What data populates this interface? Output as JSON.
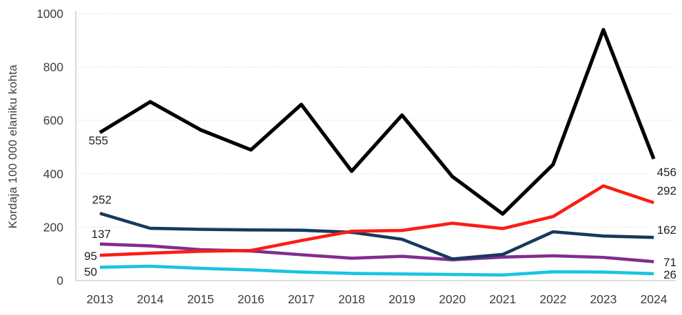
{
  "chart_data": {
    "type": "line",
    "title": "",
    "xlabel": "",
    "ylabel": "Kordaja 100 000 elaniku kohta",
    "ylim": [
      0,
      1000
    ],
    "yticks": [
      0,
      200,
      400,
      600,
      800,
      1000
    ],
    "y_tick_labels": [
      "0",
      "200",
      "400",
      "600",
      "800",
      "1000"
    ],
    "x_tick_labels": [
      "2013",
      "2014",
      "2015",
      "2016",
      "2017",
      "2018",
      "2019",
      "2020",
      "2021",
      "2022",
      "2023",
      "2024"
    ],
    "categories": [
      2013,
      2014,
      2015,
      2016,
      2017,
      2018,
      2019,
      2020,
      2021,
      2022,
      2023,
      2024
    ],
    "grid": "horizontal-dotted",
    "legend": "none",
    "series": [
      {
        "name": "purple-line",
        "color": "#812d91",
        "values": [
          137,
          130,
          116,
          111,
          97,
          84,
          91,
          78,
          88,
          93,
          87,
          71
        ],
        "start_label": "137",
        "end_label": "71"
      },
      {
        "name": "navy-line",
        "color": "#17395d",
        "values": [
          252,
          196,
          192,
          190,
          189,
          181,
          155,
          81,
          98,
          183,
          167,
          162
        ],
        "start_label": "252",
        "end_label": "162"
      },
      {
        "name": "red-line",
        "color": "#fa1d15",
        "values": [
          95,
          103,
          110,
          113,
          150,
          185,
          188,
          215,
          195,
          240,
          355,
          292
        ],
        "start_label": "95",
        "end_label": "292"
      },
      {
        "name": "cyan-line",
        "color": "#18c4e2",
        "values": [
          50,
          54,
          46,
          40,
          32,
          27,
          25,
          23,
          21,
          33,
          32,
          26
        ],
        "start_label": "50",
        "end_label": "26"
      },
      {
        "name": "black-line",
        "color": "#000000",
        "values": [
          555,
          670,
          565,
          490,
          660,
          410,
          620,
          390,
          250,
          435,
          940,
          456
        ],
        "start_label": "555",
        "end_label": "456"
      }
    ],
    "colors": {
      "background": "#ffffff",
      "grid": "#d7d7d7",
      "axis": "#d0d0d0",
      "tick_text": "#3d3d3d",
      "data_label_text": "#1f1f1f"
    }
  }
}
